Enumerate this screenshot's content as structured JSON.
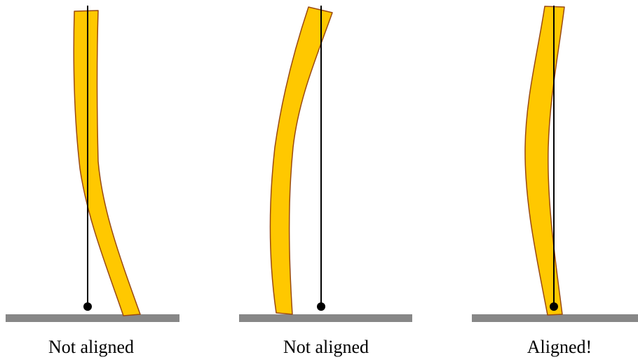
{
  "colors": {
    "stalk_fill": "#FFC800",
    "stalk_stroke": "#9A4A10",
    "ground": "#878787",
    "plumb_line": "#000000",
    "text": "#000000"
  },
  "panels": [
    {
      "caption": "Not aligned",
      "aligned": false
    },
    {
      "caption": "Not aligned",
      "aligned": false
    },
    {
      "caption": "Aligned!",
      "aligned": true
    }
  ]
}
